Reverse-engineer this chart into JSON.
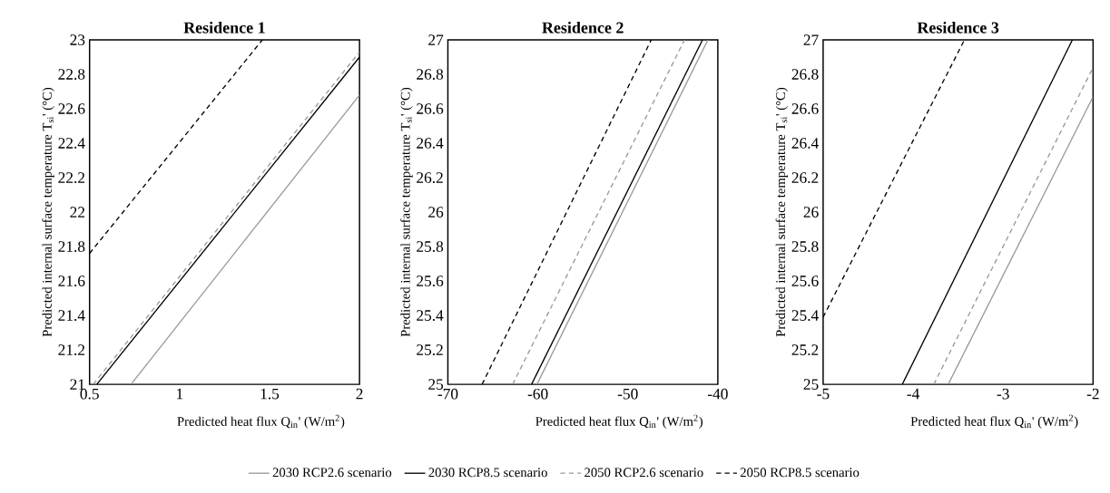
{
  "chart_data": [
    {
      "type": "line",
      "title": "Residence 1",
      "xlabel": "Predicted heat flux Q$_{in}$' (W/m$^{2}$)",
      "ylabel": "Predicted internal surface temperature T$_{si}$' (°C)",
      "xlim": [
        0.5,
        2
      ],
      "ylim": [
        21,
        23
      ],
      "xticks": [
        0.5,
        1,
        1.5,
        2
      ],
      "yticks": [
        21,
        21.2,
        21.4,
        21.6,
        21.8,
        22,
        22.2,
        22.4,
        22.6,
        22.8,
        23
      ],
      "legend": "bottom",
      "marker": "none",
      "series": [
        {
          "name": "2030 RCP2.6 scenario",
          "color": "#999999",
          "line_style": "solid",
          "x": [
            0.73,
            2
          ],
          "values": [
            21,
            22.68
          ]
        },
        {
          "name": "2030 RCP8.5 scenario",
          "color": "#000000",
          "line_style": "solid",
          "x": [
            0.54,
            2
          ],
          "values": [
            21,
            22.9
          ]
        },
        {
          "name": "2050 RCP2.6 scenario",
          "color": "#999999",
          "line_style": "dashed",
          "x": [
            0.52,
            2
          ],
          "values": [
            21,
            22.93
          ]
        },
        {
          "name": "2050 RCP8.5 scenario",
          "color": "#000000",
          "line_style": "dashed",
          "x": [
            0.5,
            1.46
          ],
          "values": [
            21.76,
            23
          ]
        }
      ]
    },
    {
      "type": "line",
      "title": "Residence 2",
      "xlabel": "Predicted heat flux Q$_{in}$' (W/m$^{2}$)",
      "ylabel": "Predicted internal surface temperature T$_{si}$' (°C)",
      "xlim": [
        -70,
        -40
      ],
      "ylim": [
        25,
        27
      ],
      "xticks": [
        -70,
        -60,
        -50,
        -40
      ],
      "yticks": [
        25,
        25.2,
        25.4,
        25.6,
        25.8,
        26,
        26.2,
        26.4,
        26.6,
        26.8,
        27
      ],
      "marker": "none",
      "series": [
        {
          "color": "#999999",
          "line_style": "solid",
          "x": [
            -60.1,
            -41.1
          ],
          "values": [
            25,
            27
          ]
        },
        {
          "color": "#000000",
          "line_style": "solid",
          "x": [
            -60.7,
            -41.7
          ],
          "values": [
            25,
            27
          ]
        },
        {
          "color": "#999999",
          "line_style": "dashed",
          "x": [
            -62.8,
            -43.7
          ],
          "values": [
            25,
            27
          ]
        },
        {
          "color": "#000000",
          "line_style": "dashed",
          "x": [
            -66.2,
            -47.4
          ],
          "values": [
            25,
            27
          ]
        }
      ]
    },
    {
      "type": "line",
      "title": "Residence 3",
      "xlabel": "Predicted heat flux Q$_{in}$' (W/m$^{2}$)",
      "ylabel": "Predicted internal surface temperature T$_{si}$' (°C)",
      "xlim": [
        -5,
        -2
      ],
      "ylim": [
        25,
        27
      ],
      "xticks": [
        -5,
        -4,
        -3,
        -2
      ],
      "yticks": [
        25,
        25.2,
        25.4,
        25.6,
        25.8,
        26,
        26.2,
        26.4,
        26.6,
        26.8,
        27
      ],
      "marker": "none",
      "series": [
        {
          "color": "#999999",
          "line_style": "solid",
          "x": [
            -3.61,
            -2
          ],
          "values": [
            25,
            26.67
          ]
        },
        {
          "color": "#000000",
          "line_style": "solid",
          "x": [
            -4.12,
            -2.23
          ],
          "values": [
            25,
            27
          ]
        },
        {
          "color": "#999999",
          "line_style": "dashed",
          "x": [
            -3.77,
            -2
          ],
          "values": [
            25,
            26.84
          ]
        },
        {
          "color": "#000000",
          "line_style": "dashed",
          "x": [
            -5,
            -3.43
          ],
          "values": [
            25.39,
            27
          ]
        }
      ]
    }
  ]
}
